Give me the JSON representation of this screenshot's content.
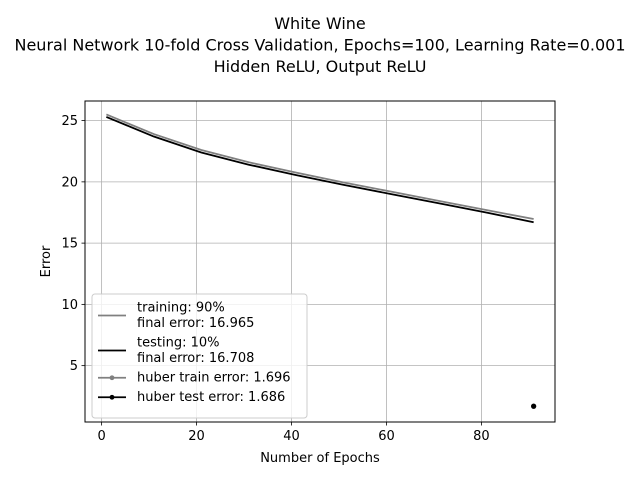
{
  "chart_data": {
    "type": "line",
    "title_lines": [
      "White Wine",
      "Neural Network 10-fold Cross Validation, Epochs=100, Learning Rate=0.001",
      "Hidden ReLU, Output ReLU"
    ],
    "xlabel": "Number of Epochs",
    "ylabel": "Error",
    "xlim": [
      -3.5,
      95.5
    ],
    "ylim": [
      0.4,
      26.6
    ],
    "xticks": [
      0,
      20,
      40,
      60,
      80
    ],
    "yticks": [
      5,
      10,
      15,
      20,
      25
    ],
    "grid": true,
    "legend_position": "lower-left",
    "series": [
      {
        "kind": "line",
        "color": "#808080",
        "legend_lines": [
          "training: 90%",
          "final error: 16.965"
        ],
        "x": [
          1,
          11,
          21,
          31,
          41,
          51,
          61,
          71,
          81,
          91
        ],
        "y": [
          25.5,
          23.9,
          22.6,
          21.6,
          20.75,
          19.95,
          19.2,
          18.45,
          17.7,
          16.965
        ]
      },
      {
        "kind": "line",
        "color": "#000000",
        "legend_lines": [
          "testing: 10%",
          "final error: 16.708"
        ],
        "x": [
          1,
          11,
          21,
          31,
          41,
          51,
          61,
          71,
          81,
          91
        ],
        "y": [
          25.3,
          23.7,
          22.4,
          21.4,
          20.55,
          19.75,
          19.0,
          18.25,
          17.5,
          16.708
        ]
      },
      {
        "kind": "point",
        "color": "#808080",
        "legend_lines": [
          "huber train error: 1.696"
        ],
        "x": [
          91
        ],
        "y": [
          1.696
        ]
      },
      {
        "kind": "point",
        "color": "#000000",
        "legend_lines": [
          "huber test error: 1.686"
        ],
        "x": [
          91
        ],
        "y": [
          1.686
        ]
      }
    ]
  }
}
